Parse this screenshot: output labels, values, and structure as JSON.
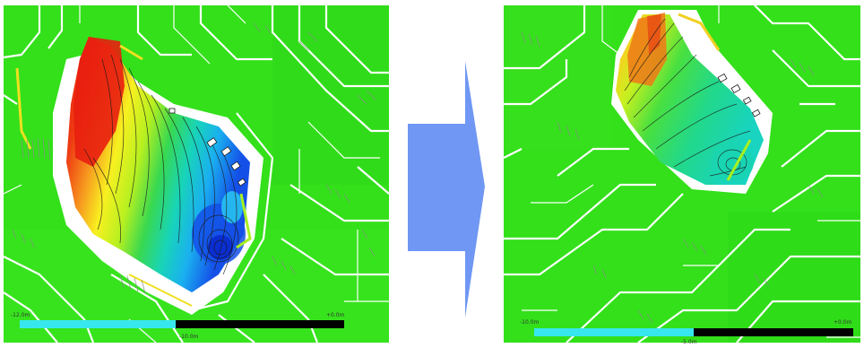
{
  "figure": {
    "left_panel": {
      "scale_left_label": "-12.0m",
      "scale_mid_label": "-10.0m",
      "scale_right_label": "+0.0m",
      "scale_split": 0.48
    },
    "right_panel": {
      "scale_left_label": "-10.0m",
      "scale_mid_label": "-5.0m",
      "scale_right_label": "+0.0m",
      "scale_split": 0.5
    },
    "arrow_color": "#6f97f3",
    "colors": {
      "background_green": "#33e01a",
      "scale_cyan": "#37e7ee",
      "scale_black": "#000000",
      "red": "#e81e10",
      "blue": "#1450e8"
    },
    "icons": [
      "right-arrow-icon"
    ]
  }
}
